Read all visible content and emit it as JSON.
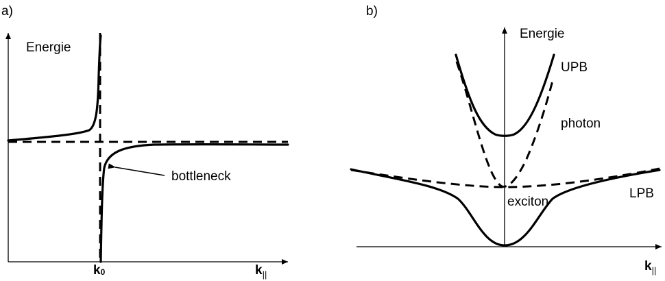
{
  "panel_a": {
    "label": "a)",
    "y_axis_label": "Energie",
    "x_tick_label": "k",
    "x_tick_subscript": "0",
    "x_axis_label": "k",
    "x_axis_subscript": "||",
    "annotation": "bottleneck"
  },
  "panel_b": {
    "label": "b)",
    "y_axis_label": "Energie",
    "upper_branch_label": "UPB",
    "photon_label": "photon",
    "exciton_label": "exciton",
    "lower_branch_label": "LPB",
    "x_axis_label": "k",
    "x_axis_subscript": "||"
  },
  "colors": {
    "ink": "#000000",
    "background": "#ffffff"
  }
}
